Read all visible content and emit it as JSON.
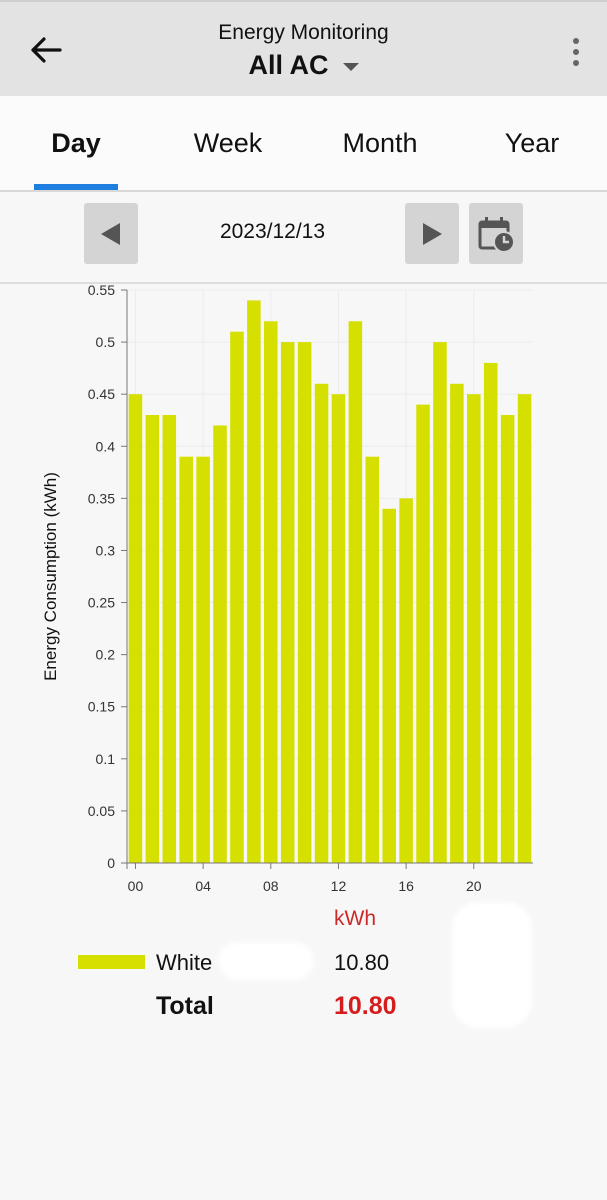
{
  "header": {
    "title": "Energy Monitoring",
    "device": "All AC",
    "back_icon": "arrow-left-icon",
    "menu_icon": "more-vert-icon"
  },
  "tabs": [
    {
      "label": "Day",
      "active": true
    },
    {
      "label": "Week",
      "active": false
    },
    {
      "label": "Month",
      "active": false
    },
    {
      "label": "Year",
      "active": false
    }
  ],
  "date_nav": {
    "date": "2023/12/13",
    "prev_icon": "triangle-left-icon",
    "next_icon": "triangle-right-icon",
    "calendar_icon": "calendar-clock-icon"
  },
  "colors": {
    "accent": "#1e7fe0",
    "bar": "#d6e000",
    "total": "#d41e1e",
    "unit": "#cc2a2a"
  },
  "chart_data": {
    "type": "bar",
    "ylabel": "Energy Consumption (kWh)",
    "xlabel": "",
    "ylim": [
      0,
      0.55
    ],
    "yticks": [
      "0",
      "0.05",
      "0.1",
      "0.15",
      "0.2",
      "0.25",
      "0.3",
      "0.35",
      "0.4",
      "0.45",
      "0.5",
      "0.55"
    ],
    "xtick_labels": [
      "00",
      "04",
      "08",
      "12",
      "16",
      "20"
    ],
    "xtick_hours": [
      0,
      4,
      8,
      12,
      16,
      20
    ],
    "hours": [
      0,
      1,
      2,
      3,
      4,
      5,
      6,
      7,
      8,
      9,
      10,
      11,
      12,
      13,
      14,
      15,
      16,
      17,
      18,
      19,
      20,
      21,
      22,
      23
    ],
    "series": [
      {
        "name": "White",
        "values": [
          0.45,
          0.43,
          0.43,
          0.39,
          0.39,
          0.42,
          0.51,
          0.54,
          0.52,
          0.5,
          0.5,
          0.46,
          0.45,
          0.52,
          0.39,
          0.34,
          0.35,
          0.44,
          0.5,
          0.46,
          0.45,
          0.48,
          0.43,
          0.45
        ]
      }
    ],
    "grid": true
  },
  "summary": {
    "unit": "kWh",
    "rows": [
      {
        "name": "White",
        "value": "10.80"
      }
    ],
    "total_label": "Total",
    "total_value": "10.80"
  }
}
